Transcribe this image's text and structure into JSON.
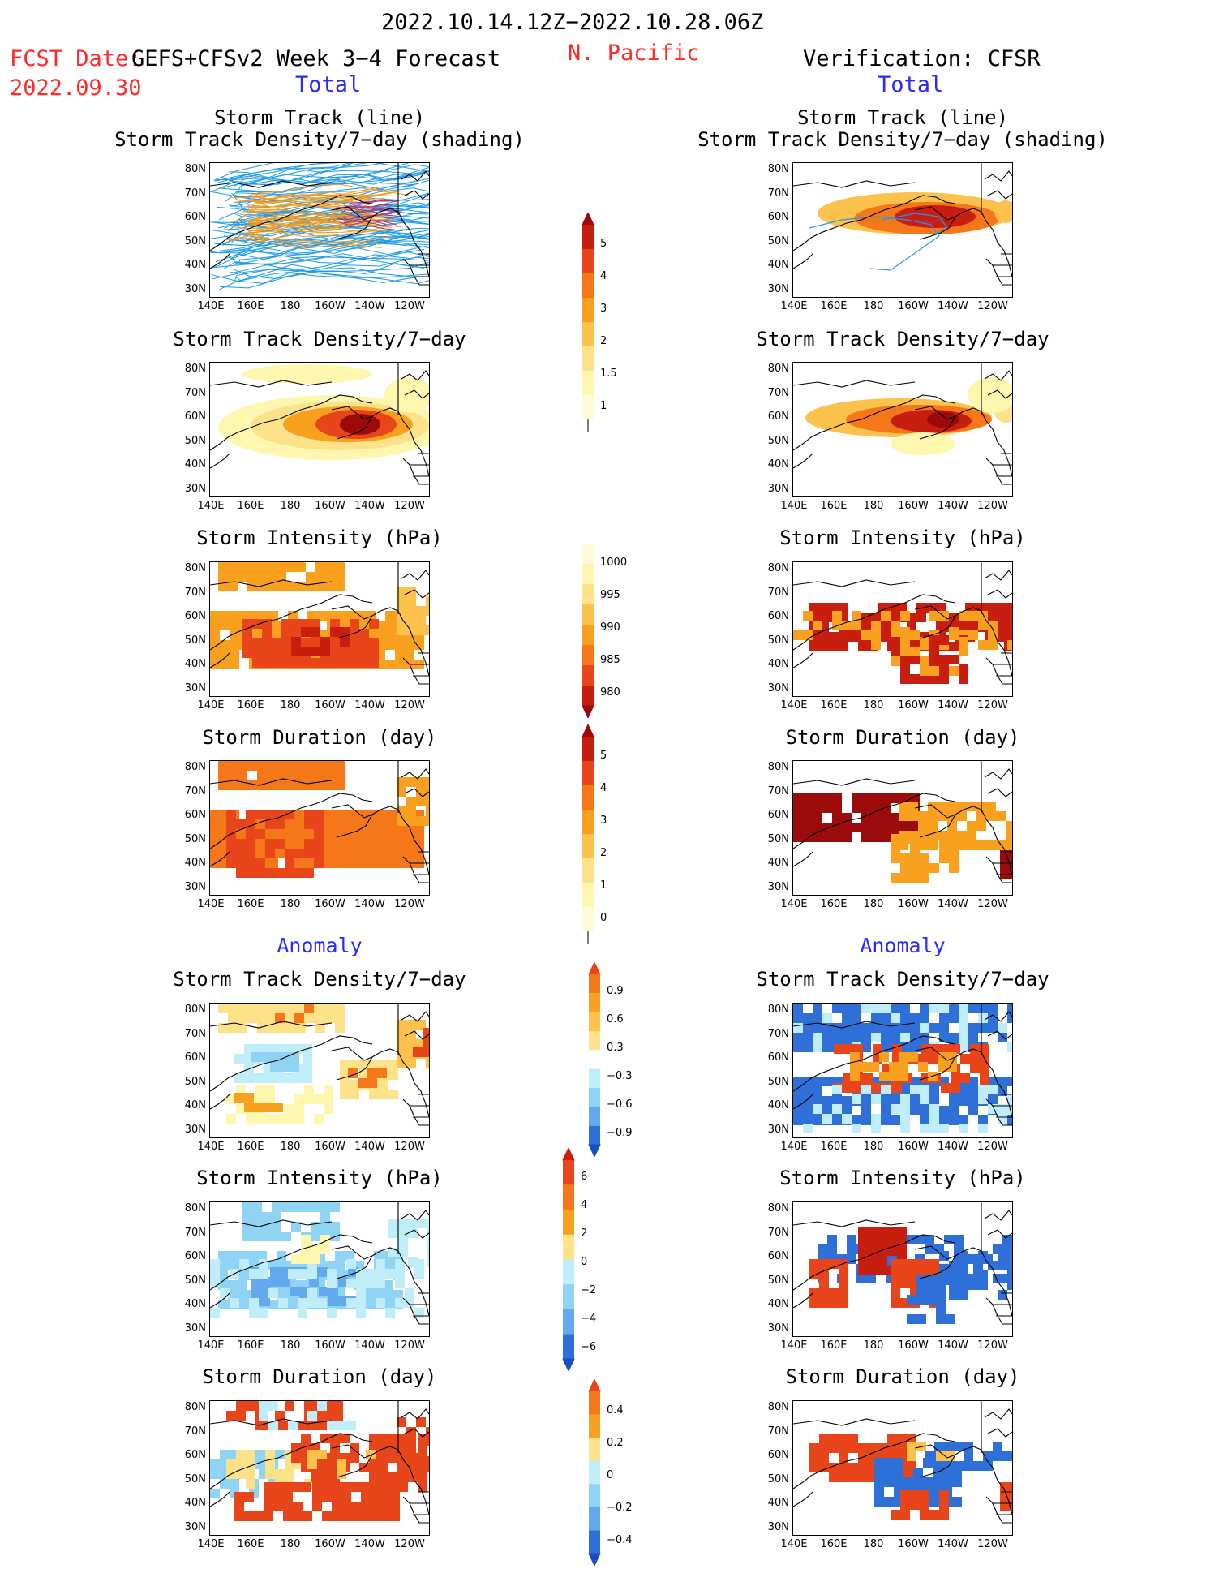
{
  "header": {
    "period": "2022.10.14.12Z−2022.10.28.06Z",
    "fcst_date_label": "FCST Date:",
    "fcst_model": "GEFS+CFSv2 Week 3−4 Forecast",
    "fcst_date": "2022.09.30",
    "region": "N. Pacific",
    "verification": "Verification: CFSR",
    "total_left": "Total",
    "total_right": "Total",
    "anomaly_left": "Anomaly",
    "anomaly_right": "Anomaly"
  },
  "titles": {
    "track_line": "Storm Track (line)",
    "track_density_shading": "Storm Track Density/7−day (shading)",
    "track_density": "Storm Track Density/7−day",
    "intensity": "Storm Intensity (hPa)",
    "duration": "Storm Duration (day)"
  },
  "axes": {
    "lat_ticks": [
      "80N",
      "70N",
      "60N",
      "50N",
      "40N",
      "30N"
    ],
    "lon_ticks": [
      "140E",
      "160E",
      "180",
      "160W",
      "140W",
      "120W"
    ]
  },
  "colorbars": {
    "density_total": [
      "5",
      "4",
      "3",
      "2",
      "1.5",
      "1"
    ],
    "intensity_total": [
      "1000",
      "995",
      "990",
      "985",
      "980"
    ],
    "duration_total": [
      "5",
      "4",
      "3",
      "2",
      "1",
      "0"
    ],
    "density_anom": [
      "0.9",
      "0.6",
      "0.3",
      "−0.3",
      "−0.6",
      "−0.9"
    ],
    "intensity_anom": [
      "6",
      "4",
      "2",
      "0",
      "−2",
      "−4",
      "−6"
    ],
    "duration_anom": [
      "0.4",
      "0.2",
      "0",
      "−0.2",
      "−0.4"
    ]
  },
  "colors": {
    "warm": [
      "#fff7b0",
      "#fde28a",
      "#fdc24b",
      "#f9a01f",
      "#f4771a",
      "#e8451a",
      "#c81e0f",
      "#9c0b0b"
    ],
    "cool": [
      "#bfeefa",
      "#8fd3f5",
      "#63a9ee",
      "#2e6fd8",
      "#1a4fc4"
    ],
    "track_blue": "#1e9be8",
    "track_orange": "#f29a1f",
    "track_purple": "#9b3a8c"
  }
}
